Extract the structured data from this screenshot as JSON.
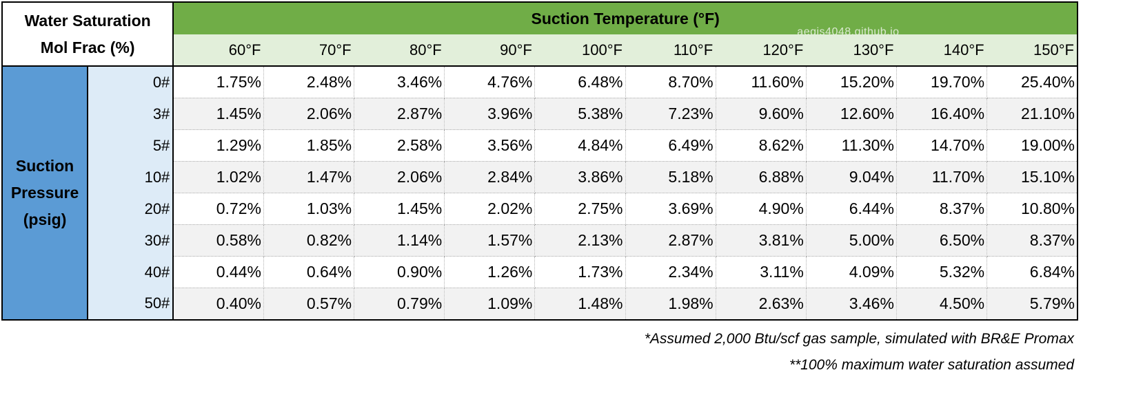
{
  "corner_label": [
    "Water Saturation",
    "Mol Frac (%)"
  ],
  "temperature_title": "Suction Temperature (°F)",
  "watermark": "aegis4048.github.io",
  "temperatures": [
    "60°F",
    "70°F",
    "80°F",
    "90°F",
    "100°F",
    "110°F",
    "120°F",
    "130°F",
    "140°F",
    "150°F"
  ],
  "pressure_title": [
    "Suction",
    "Pressure",
    "(psig)"
  ],
  "rows": [
    {
      "pressure": "0#",
      "values": [
        "1.75%",
        "2.48%",
        "3.46%",
        "4.76%",
        "6.48%",
        "8.70%",
        "11.60%",
        "15.20%",
        "19.70%",
        "25.40%"
      ]
    },
    {
      "pressure": "3#",
      "values": [
        "1.45%",
        "2.06%",
        "2.87%",
        "3.96%",
        "5.38%",
        "7.23%",
        "9.60%",
        "12.60%",
        "16.40%",
        "21.10%"
      ]
    },
    {
      "pressure": "5#",
      "values": [
        "1.29%",
        "1.85%",
        "2.58%",
        "3.56%",
        "4.84%",
        "6.49%",
        "8.62%",
        "11.30%",
        "14.70%",
        "19.00%"
      ]
    },
    {
      "pressure": "10#",
      "values": [
        "1.02%",
        "1.47%",
        "2.06%",
        "2.84%",
        "3.86%",
        "5.18%",
        "6.88%",
        "9.04%",
        "11.70%",
        "15.10%"
      ]
    },
    {
      "pressure": "20#",
      "values": [
        "0.72%",
        "1.03%",
        "1.45%",
        "2.02%",
        "2.75%",
        "3.69%",
        "4.90%",
        "6.44%",
        "8.37%",
        "10.80%"
      ]
    },
    {
      "pressure": "30#",
      "values": [
        "0.58%",
        "0.82%",
        "1.14%",
        "1.57%",
        "2.13%",
        "2.87%",
        "3.81%",
        "5.00%",
        "6.50%",
        "8.37%"
      ]
    },
    {
      "pressure": "40#",
      "values": [
        "0.44%",
        "0.64%",
        "0.90%",
        "1.26%",
        "1.73%",
        "2.34%",
        "3.11%",
        "4.09%",
        "5.32%",
        "6.84%"
      ]
    },
    {
      "pressure": "50#",
      "values": [
        "0.40%",
        "0.57%",
        "0.79%",
        "1.09%",
        "1.48%",
        "1.98%",
        "2.63%",
        "3.46%",
        "4.50%",
        "5.79%"
      ]
    }
  ],
  "notes": [
    "*Assumed 2,000 Btu/scf gas sample, simulated with BR&E Promax",
    "**100% maximum water saturation assumed"
  ],
  "colors": {
    "header_green": "#70ad47",
    "subheader_green": "#e2efda",
    "pressure_blue": "#5b9bd5",
    "pressure_light_blue": "#ddebf7",
    "alt_row_gray": "#f2f2f2"
  }
}
